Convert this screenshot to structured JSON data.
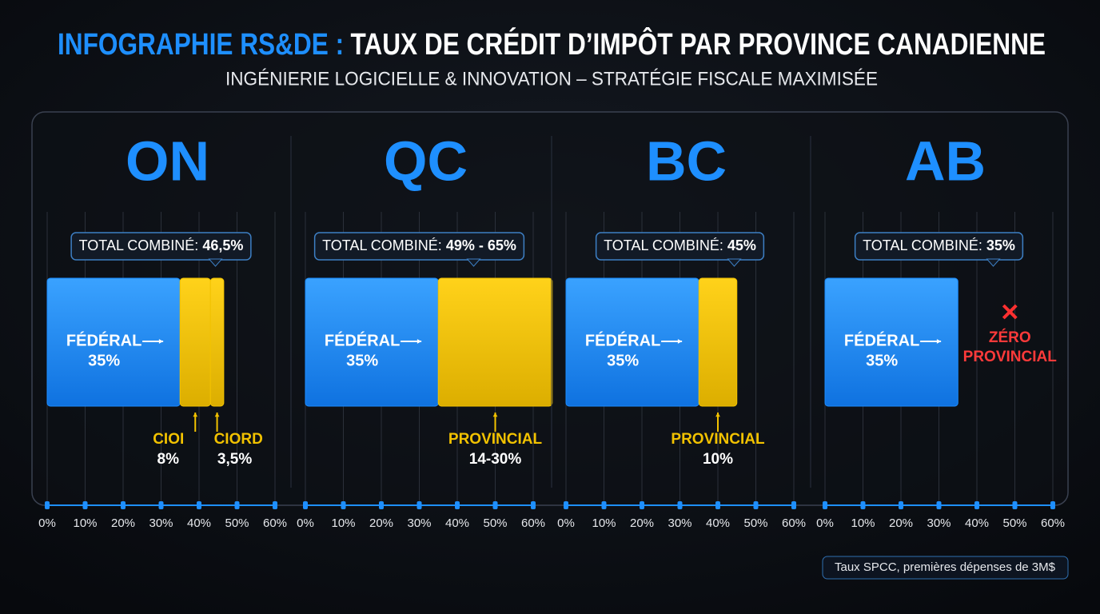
{
  "title_prefix": "INFOGRAPHIE RS&DE :",
  "title": "TAUX DE CRÉDIT D’IMPÔT PAR PROVINCE CANADIENNE",
  "subtitle": "INGÉNIERIE LOGICIELLE & INNOVATION – STRATÉGIE FISCALE MAXIMISÉE",
  "footnote": "Taux SPCC, premières dépenses de 3M$",
  "chart_data": [
    {
      "type": "bar",
      "orientation": "horizontal",
      "stacked": true,
      "title": "ON",
      "total_label": "TOTAL COMBINÉ:",
      "total": "46,5%",
      "xlim": [
        0,
        60
      ],
      "xticks": [
        {
          "value": 0,
          "label": "0%"
        },
        {
          "value": 10,
          "label": "10%"
        },
        {
          "value": 20,
          "label": "20%"
        },
        {
          "value": 30,
          "label": "30%"
        },
        {
          "value": 40,
          "label": "40%"
        },
        {
          "value": 50,
          "label": "50%"
        },
        {
          "value": 60,
          "label": "60%"
        }
      ],
      "grid": true,
      "series": [
        {
          "name": "FÉDÉRAL",
          "color": "#1b8cff",
          "values": [
            35
          ],
          "value_labels": [
            "35%"
          ]
        },
        {
          "name": "CIOI",
          "color": "#f2c200",
          "values": [
            8
          ],
          "value_labels": [
            "8%"
          ]
        },
        {
          "name": "CIORD",
          "color": "#f2c200",
          "values": [
            3.5
          ],
          "value_labels": [
            "3,5%"
          ]
        }
      ]
    },
    {
      "type": "bar",
      "orientation": "horizontal",
      "stacked": true,
      "title": "QC",
      "total_label": "TOTAL COMBINÉ:",
      "total": "49% - 65%",
      "xlim": [
        0,
        60
      ],
      "xticks": [
        {
          "value": 0,
          "label": "0%"
        },
        {
          "value": 10,
          "label": "10%"
        },
        {
          "value": 20,
          "label": "20%"
        },
        {
          "value": 30,
          "label": "30%"
        },
        {
          "value": 40,
          "label": "40%"
        },
        {
          "value": 50,
          "label": "50%"
        },
        {
          "value": 60,
          "label": "60%"
        }
      ],
      "grid": true,
      "series": [
        {
          "name": "FÉDÉRAL",
          "color": "#1b8cff",
          "values": [
            35
          ],
          "value_labels": [
            "35%"
          ]
        },
        {
          "name": "PROVINCIAL",
          "color": "#f2c200",
          "values": [
            30
          ],
          "value_labels": [
            "14-30%"
          ]
        }
      ]
    },
    {
      "type": "bar",
      "orientation": "horizontal",
      "stacked": true,
      "title": "BC",
      "total_label": "TOTAL COMBINÉ:",
      "total": "45%",
      "xlim": [
        0,
        60
      ],
      "xticks": [
        {
          "value": 0,
          "label": "0%"
        },
        {
          "value": 10,
          "label": "10%"
        },
        {
          "value": 20,
          "label": "20%"
        },
        {
          "value": 30,
          "label": "30%"
        },
        {
          "value": 40,
          "label": "40%"
        },
        {
          "value": 50,
          "label": "50%"
        },
        {
          "value": 60,
          "label": "60%"
        }
      ],
      "grid": true,
      "series": [
        {
          "name": "FÉDÉRAL",
          "color": "#1b8cff",
          "values": [
            35
          ],
          "value_labels": [
            "35%"
          ]
        },
        {
          "name": "PROVINCIAL",
          "color": "#f2c200",
          "values": [
            10
          ],
          "value_labels": [
            "10%"
          ]
        }
      ]
    },
    {
      "type": "bar",
      "orientation": "horizontal",
      "stacked": true,
      "title": "AB",
      "total_label": "TOTAL COMBINÉ:",
      "total": "35%",
      "annotation": "ZÉRO PROVINCIAL",
      "xlim": [
        0,
        60
      ],
      "xticks": [
        {
          "value": 0,
          "label": "0%"
        },
        {
          "value": 10,
          "label": "10%"
        },
        {
          "value": 20,
          "label": "20%"
        },
        {
          "value": 30,
          "label": "30%"
        },
        {
          "value": 40,
          "label": "40%"
        },
        {
          "value": 50,
          "label": "50%"
        },
        {
          "value": 60,
          "label": "60%"
        }
      ],
      "grid": true,
      "series": [
        {
          "name": "FÉDÉRAL",
          "color": "#1b8cff",
          "values": [
            35
          ],
          "value_labels": [
            "35%"
          ]
        }
      ]
    }
  ]
}
